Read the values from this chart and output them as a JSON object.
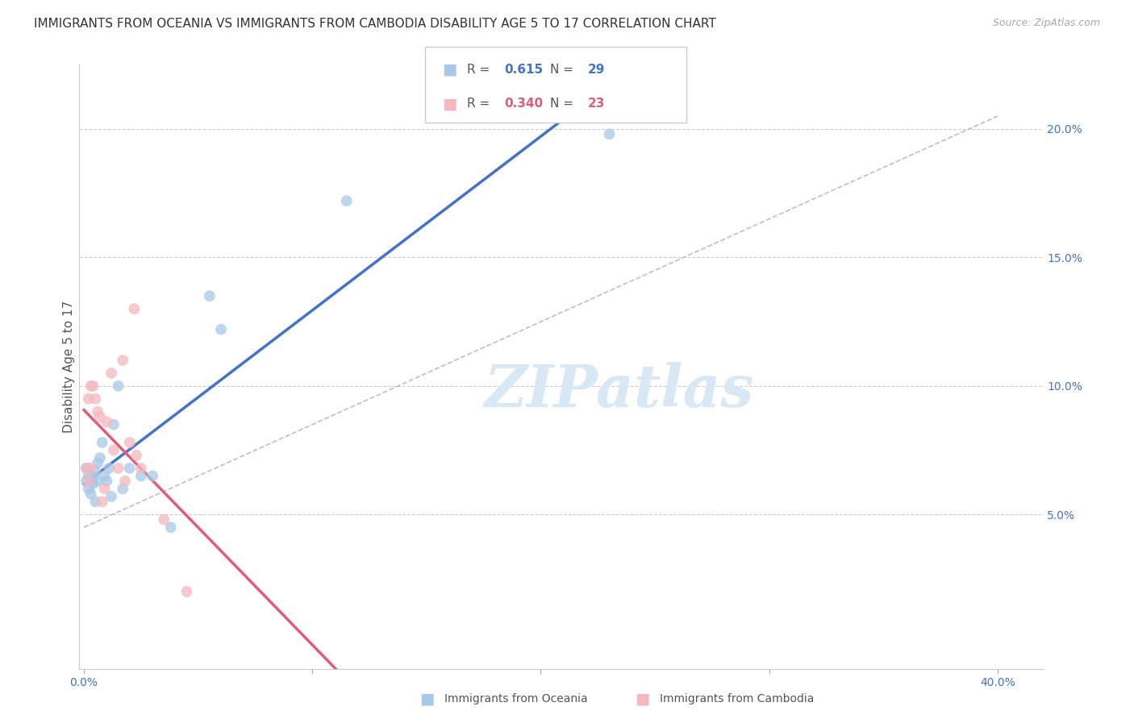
{
  "title": "IMMIGRANTS FROM OCEANIA VS IMMIGRANTS FROM CAMBODIA DISABILITY AGE 5 TO 17 CORRELATION CHART",
  "source": "Source: ZipAtlas.com",
  "ylabel": "Disability Age 5 to 17",
  "y_ticks": [
    0.05,
    0.1,
    0.15,
    0.2
  ],
  "y_tick_labels": [
    "5.0%",
    "10.0%",
    "15.0%",
    "20.0%"
  ],
  "xlim": [
    -0.002,
    0.42
  ],
  "ylim": [
    -0.01,
    0.225
  ],
  "footer_labels": [
    "Immigrants from Oceania",
    "Immigrants from Cambodia"
  ],
  "scatter_color_oceania": "#a8c8e8",
  "scatter_color_cambodia": "#f4b8c0",
  "line_color_oceania": "#4472c4",
  "line_color_cambodia": "#e05c7a",
  "diag_line_color": "#c0c0c0",
  "title_fontsize": 11,
  "source_fontsize": 9,
  "tick_fontsize": 10,
  "ylabel_fontsize": 11,
  "watermark": "ZIPatlas",
  "watermark_color": "#d8e8f5",
  "watermark_fontsize": 52,
  "scatter_size": 100,
  "scatter_alpha": 0.75,
  "line_width": 2.5,
  "oceania_x": [
    0.001,
    0.001,
    0.002,
    0.002,
    0.003,
    0.003,
    0.004,
    0.004,
    0.005,
    0.005,
    0.006,
    0.006,
    0.007,
    0.008,
    0.009,
    0.01,
    0.011,
    0.012,
    0.013,
    0.015,
    0.017,
    0.02,
    0.025,
    0.03,
    0.038,
    0.055,
    0.06,
    0.115,
    0.23
  ],
  "oceania_y": [
    0.068,
    0.063,
    0.065,
    0.06,
    0.063,
    0.058,
    0.065,
    0.062,
    0.067,
    0.055,
    0.063,
    0.07,
    0.072,
    0.078,
    0.065,
    0.063,
    0.068,
    0.057,
    0.085,
    0.1,
    0.06,
    0.068,
    0.065,
    0.065,
    0.045,
    0.135,
    0.122,
    0.172,
    0.198
  ],
  "cambodia_x": [
    0.001,
    0.002,
    0.002,
    0.003,
    0.003,
    0.004,
    0.005,
    0.006,
    0.007,
    0.008,
    0.009,
    0.01,
    0.012,
    0.013,
    0.015,
    0.017,
    0.018,
    0.02,
    0.022,
    0.023,
    0.025,
    0.035,
    0.045
  ],
  "cambodia_y": [
    0.068,
    0.063,
    0.095,
    0.068,
    0.1,
    0.1,
    0.095,
    0.09,
    0.088,
    0.055,
    0.06,
    0.086,
    0.105,
    0.075,
    0.068,
    0.11,
    0.063,
    0.078,
    0.13,
    0.073,
    0.068,
    0.048,
    0.02
  ]
}
